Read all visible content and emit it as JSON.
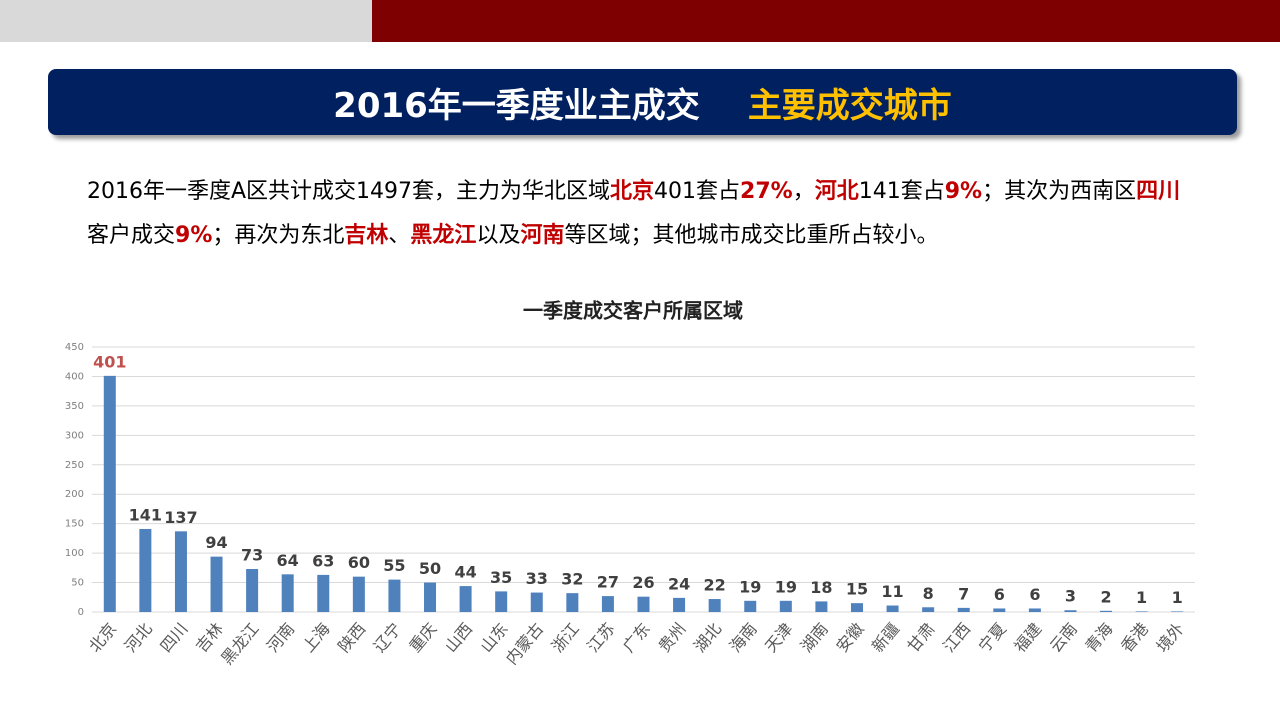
{
  "header": {
    "title": "2016年一季度业主成交",
    "subtitle": "主要成交城市"
  },
  "paragraph": {
    "highlight_color": "#c00000",
    "segments": [
      {
        "text": "2016年一季度A区共计成交1497套，主力为华北区域",
        "highlight": false
      },
      {
        "text": "北京",
        "highlight": true
      },
      {
        "text": "401套占",
        "highlight": false
      },
      {
        "text": "27%",
        "highlight": true
      },
      {
        "text": "，",
        "highlight": false
      },
      {
        "text": "河北",
        "highlight": true
      },
      {
        "text": "141套占",
        "highlight": false
      },
      {
        "text": "9%",
        "highlight": true
      },
      {
        "text": "；其次为西南区",
        "highlight": false
      },
      {
        "text": "四川",
        "highlight": true
      },
      {
        "text": "客户成交",
        "highlight": false
      },
      {
        "text": "9%",
        "highlight": true
      },
      {
        "text": "；再次为东北",
        "highlight": false
      },
      {
        "text": "吉林",
        "highlight": true
      },
      {
        "text": "、",
        "highlight": false
      },
      {
        "text": "黑龙江",
        "highlight": true
      },
      {
        "text": "以及",
        "highlight": false
      },
      {
        "text": "河南",
        "highlight": true
      },
      {
        "text": "等区域；其他城市成交比重所占较小。",
        "highlight": false
      }
    ]
  },
  "chart_data": {
    "type": "bar",
    "title": "一季度成交客户所属区域",
    "categories": [
      "北京",
      "河北",
      "四川",
      "吉林",
      "黑龙江",
      "河南",
      "上海",
      "陕西",
      "辽宁",
      "重庆",
      "山西",
      "山东",
      "内蒙古",
      "浙江",
      "江苏",
      "广东",
      "贵州",
      "湖北",
      "海南",
      "天津",
      "湖南",
      "安徽",
      "新疆",
      "甘肃",
      "江西",
      "宁夏",
      "福建",
      "云南",
      "青海",
      "香港",
      "境外"
    ],
    "values": [
      401,
      141,
      137,
      94,
      73,
      64,
      63,
      60,
      55,
      50,
      44,
      35,
      33,
      32,
      27,
      26,
      24,
      22,
      19,
      19,
      18,
      15,
      11,
      8,
      7,
      6,
      6,
      3,
      2,
      1,
      1
    ],
    "color": "#4f81bd",
    "label_color": "#404040",
    "highlight": {
      "index": 0,
      "color": "#c0504d"
    },
    "ylim": [
      0,
      450
    ],
    "yticks": [
      0,
      50,
      100,
      150,
      200,
      250,
      300,
      350,
      400,
      450
    ],
    "grid": true
  }
}
